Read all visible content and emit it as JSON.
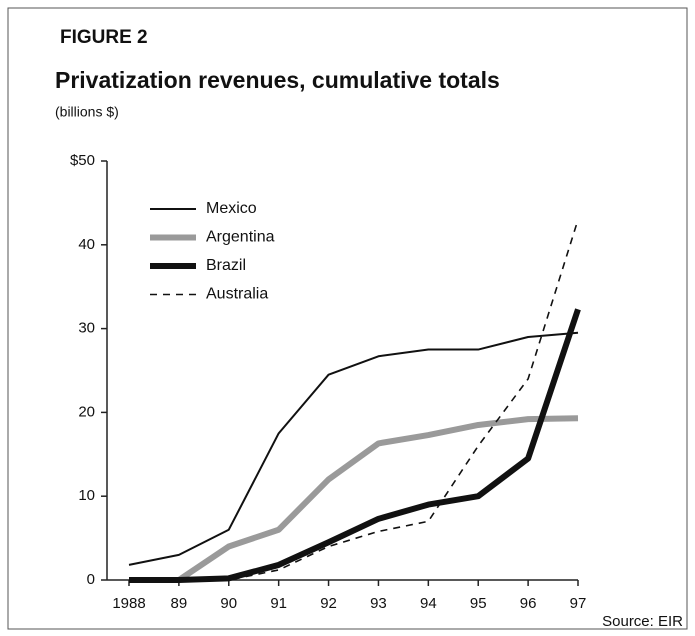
{
  "chart_data": {
    "type": "line",
    "label": "FIGURE 2",
    "title": "Privatization revenues, cumulative totals",
    "subtitle": "(billions $)",
    "source": "Source: EIR",
    "categories": [
      "1988",
      "89",
      "90",
      "91",
      "92",
      "93",
      "94",
      "95",
      "96",
      "97"
    ],
    "series": [
      {
        "name": "Mexico",
        "color": "#111111",
        "line_style": "thin",
        "values": [
          1.8,
          3,
          6,
          17.5,
          24.5,
          26.7,
          27.5,
          27.5,
          29,
          29.5
        ]
      },
      {
        "name": "Argentina",
        "color": "#9a9a9a",
        "line_style": "thick",
        "values": [
          0,
          0,
          4,
          6,
          12,
          16.3,
          17.3,
          18.5,
          19.2,
          19.3
        ]
      },
      {
        "name": "Brazil",
        "color": "#111111",
        "line_style": "thick",
        "values": [
          0,
          0,
          0.2,
          1.8,
          4.5,
          7.3,
          9,
          10,
          14.5,
          32.3
        ]
      },
      {
        "name": "Australia",
        "color": "#111111",
        "line_style": "dashed",
        "values": [
          0,
          0,
          0,
          1.2,
          4,
          5.8,
          7,
          16,
          24,
          43
        ]
      }
    ],
    "ylim": [
      0,
      50
    ],
    "yticks": [
      0,
      10,
      20,
      30,
      40,
      {
        "value": 50,
        "label": "$50"
      }
    ],
    "legend": "top-left"
  }
}
